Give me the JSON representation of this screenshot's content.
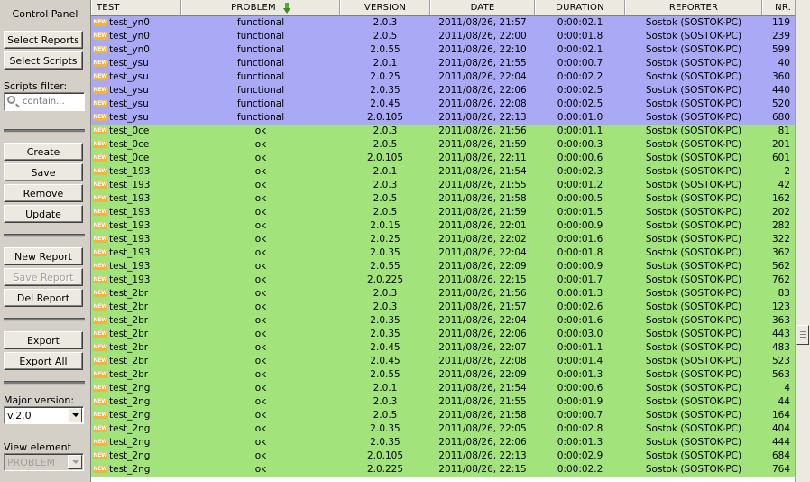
{
  "panel": {
    "title": "Control Panel",
    "select_reports": "Select Reports",
    "select_scripts": "Select Scripts",
    "scripts_filter_label": "Scripts filter:",
    "scripts_filter_placeholder": "contain...",
    "create": "Create",
    "save": "Save",
    "remove": "Remove",
    "update": "Update",
    "new_report": "New Report",
    "save_report": "Save Report",
    "del_report": "Del Report",
    "export": "Export",
    "export_all": "Export All",
    "major_version_label": "Major version:",
    "major_version_value": "v.2.0",
    "view_element_label": "View element",
    "view_element_value": "PROBLEM"
  },
  "table": {
    "columns": [
      "TEST",
      "PROBLEM",
      "VERSION",
      "DATE",
      "DURATION",
      "REPORTER",
      "NR."
    ],
    "sorted_column": "PROBLEM",
    "badge": "NEW",
    "rows": [
      {
        "test": "test_yn0",
        "problem": "functional",
        "version": "2.0.3",
        "date": "2011/08/26, 21:57",
        "duration": "0:00:02.1",
        "reporter": "Sostok (SOSTOK-PC)",
        "nr": "119"
      },
      {
        "test": "test_yn0",
        "problem": "functional",
        "version": "2.0.5",
        "date": "2011/08/26, 22:00",
        "duration": "0:00:01.8",
        "reporter": "Sostok (SOSTOK-PC)",
        "nr": "239"
      },
      {
        "test": "test_yn0",
        "problem": "functional",
        "version": "2.0.55",
        "date": "2011/08/26, 22:10",
        "duration": "0:00:02.1",
        "reporter": "Sostok (SOSTOK-PC)",
        "nr": "599"
      },
      {
        "test": "test_ysu",
        "problem": "functional",
        "version": "2.0.1",
        "date": "2011/08/26, 21:55",
        "duration": "0:00:00.7",
        "reporter": "Sostok (SOSTOK-PC)",
        "nr": "40"
      },
      {
        "test": "test_ysu",
        "problem": "functional",
        "version": "2.0.25",
        "date": "2011/08/26, 22:04",
        "duration": "0:00:02.2",
        "reporter": "Sostok (SOSTOK-PC)",
        "nr": "360"
      },
      {
        "test": "test_ysu",
        "problem": "functional",
        "version": "2.0.35",
        "date": "2011/08/26, 22:06",
        "duration": "0:00:02.5",
        "reporter": "Sostok (SOSTOK-PC)",
        "nr": "440"
      },
      {
        "test": "test_ysu",
        "problem": "functional",
        "version": "2.0.45",
        "date": "2011/08/26, 22:08",
        "duration": "0:00:02.5",
        "reporter": "Sostok (SOSTOK-PC)",
        "nr": "520"
      },
      {
        "test": "test_ysu",
        "problem": "functional",
        "version": "2.0.105",
        "date": "2011/08/26, 22:13",
        "duration": "0:00:01.0",
        "reporter": "Sostok (SOSTOK-PC)",
        "nr": "680"
      },
      {
        "test": "test_0ce",
        "problem": "ok",
        "version": "2.0.3",
        "date": "2011/08/26, 21:56",
        "duration": "0:00:01.1",
        "reporter": "Sostok (SOSTOK-PC)",
        "nr": "81"
      },
      {
        "test": "test_0ce",
        "problem": "ok",
        "version": "2.0.5",
        "date": "2011/08/26, 21:59",
        "duration": "0:00:00.3",
        "reporter": "Sostok (SOSTOK-PC)",
        "nr": "201"
      },
      {
        "test": "test_0ce",
        "problem": "ok",
        "version": "2.0.105",
        "date": "2011/08/26, 22:11",
        "duration": "0:00:00.6",
        "reporter": "Sostok (SOSTOK-PC)",
        "nr": "601"
      },
      {
        "test": "test_193",
        "problem": "ok",
        "version": "2.0.1",
        "date": "2011/08/26, 21:54",
        "duration": "0:00:02.3",
        "reporter": "Sostok (SOSTOK-PC)",
        "nr": "2"
      },
      {
        "test": "test_193",
        "problem": "ok",
        "version": "2.0.3",
        "date": "2011/08/26, 21:55",
        "duration": "0:00:01.2",
        "reporter": "Sostok (SOSTOK-PC)",
        "nr": "42"
      },
      {
        "test": "test_193",
        "problem": "ok",
        "version": "2.0.5",
        "date": "2011/08/26, 21:58",
        "duration": "0:00:00.5",
        "reporter": "Sostok (SOSTOK-PC)",
        "nr": "162"
      },
      {
        "test": "test_193",
        "problem": "ok",
        "version": "2.0.5",
        "date": "2011/08/26, 21:59",
        "duration": "0:00:01.5",
        "reporter": "Sostok (SOSTOK-PC)",
        "nr": "202"
      },
      {
        "test": "test_193",
        "problem": "ok",
        "version": "2.0.15",
        "date": "2011/08/26, 22:01",
        "duration": "0:00:00.9",
        "reporter": "Sostok (SOSTOK-PC)",
        "nr": "282"
      },
      {
        "test": "test_193",
        "problem": "ok",
        "version": "2.0.25",
        "date": "2011/08/26, 22:02",
        "duration": "0:00:01.6",
        "reporter": "Sostok (SOSTOK-PC)",
        "nr": "322"
      },
      {
        "test": "test_193",
        "problem": "ok",
        "version": "2.0.35",
        "date": "2011/08/26, 22:04",
        "duration": "0:00:01.8",
        "reporter": "Sostok (SOSTOK-PC)",
        "nr": "362"
      },
      {
        "test": "test_193",
        "problem": "ok",
        "version": "2.0.55",
        "date": "2011/08/26, 22:09",
        "duration": "0:00:00.9",
        "reporter": "Sostok (SOSTOK-PC)",
        "nr": "562"
      },
      {
        "test": "test_193",
        "problem": "ok",
        "version": "2.0.225",
        "date": "2011/08/26, 22:15",
        "duration": "0:00:01.7",
        "reporter": "Sostok (SOSTOK-PC)",
        "nr": "762"
      },
      {
        "test": "test_2br",
        "problem": "ok",
        "version": "2.0.3",
        "date": "2011/08/26, 21:56",
        "duration": "0:00:01.3",
        "reporter": "Sostok (SOSTOK-PC)",
        "nr": "83"
      },
      {
        "test": "test_2br",
        "problem": "ok",
        "version": "2.0.3",
        "date": "2011/08/26, 21:57",
        "duration": "0:00:02.6",
        "reporter": "Sostok (SOSTOK-PC)",
        "nr": "123"
      },
      {
        "test": "test_2br",
        "problem": "ok",
        "version": "2.0.35",
        "date": "2011/08/26, 22:04",
        "duration": "0:00:01.6",
        "reporter": "Sostok (SOSTOK-PC)",
        "nr": "363"
      },
      {
        "test": "test_2br",
        "problem": "ok",
        "version": "2.0.35",
        "date": "2011/08/26, 22:06",
        "duration": "0:00:03.0",
        "reporter": "Sostok (SOSTOK-PC)",
        "nr": "443"
      },
      {
        "test": "test_2br",
        "problem": "ok",
        "version": "2.0.45",
        "date": "2011/08/26, 22:07",
        "duration": "0:00:01.1",
        "reporter": "Sostok (SOSTOK-PC)",
        "nr": "483"
      },
      {
        "test": "test_2br",
        "problem": "ok",
        "version": "2.0.45",
        "date": "2011/08/26, 22:08",
        "duration": "0:00:01.4",
        "reporter": "Sostok (SOSTOK-PC)",
        "nr": "523"
      },
      {
        "test": "test_2br",
        "problem": "ok",
        "version": "2.0.55",
        "date": "2011/08/26, 22:09",
        "duration": "0:00:01.3",
        "reporter": "Sostok (SOSTOK-PC)",
        "nr": "563"
      },
      {
        "test": "test_2ng",
        "problem": "ok",
        "version": "2.0.1",
        "date": "2011/08/26, 21:54",
        "duration": "0:00:00.6",
        "reporter": "Sostok (SOSTOK-PC)",
        "nr": "4"
      },
      {
        "test": "test_2ng",
        "problem": "ok",
        "version": "2.0.3",
        "date": "2011/08/26, 21:55",
        "duration": "0:00:01.9",
        "reporter": "Sostok (SOSTOK-PC)",
        "nr": "44"
      },
      {
        "test": "test_2ng",
        "problem": "ok",
        "version": "2.0.5",
        "date": "2011/08/26, 21:58",
        "duration": "0:00:00.7",
        "reporter": "Sostok (SOSTOK-PC)",
        "nr": "164"
      },
      {
        "test": "test_2ng",
        "problem": "ok",
        "version": "2.0.35",
        "date": "2011/08/26, 22:05",
        "duration": "0:00:02.8",
        "reporter": "Sostok (SOSTOK-PC)",
        "nr": "404"
      },
      {
        "test": "test_2ng",
        "problem": "ok",
        "version": "2.0.35",
        "date": "2011/08/26, 22:06",
        "duration": "0:00:01.3",
        "reporter": "Sostok (SOSTOK-PC)",
        "nr": "444"
      },
      {
        "test": "test_2ng",
        "problem": "ok",
        "version": "2.0.105",
        "date": "2011/08/26, 22:13",
        "duration": "0:00:02.9",
        "reporter": "Sostok (SOSTOK-PC)",
        "nr": "684"
      },
      {
        "test": "test_2ng",
        "problem": "ok",
        "version": "2.0.225",
        "date": "2011/08/26, 22:15",
        "duration": "0:00:02.2",
        "reporter": "Sostok (SOSTOK-PC)",
        "nr": "764"
      }
    ]
  },
  "colors": {
    "functional_row": "#a9a9f6",
    "ok_row": "#a3e37b",
    "badge": "#f4b33c"
  }
}
